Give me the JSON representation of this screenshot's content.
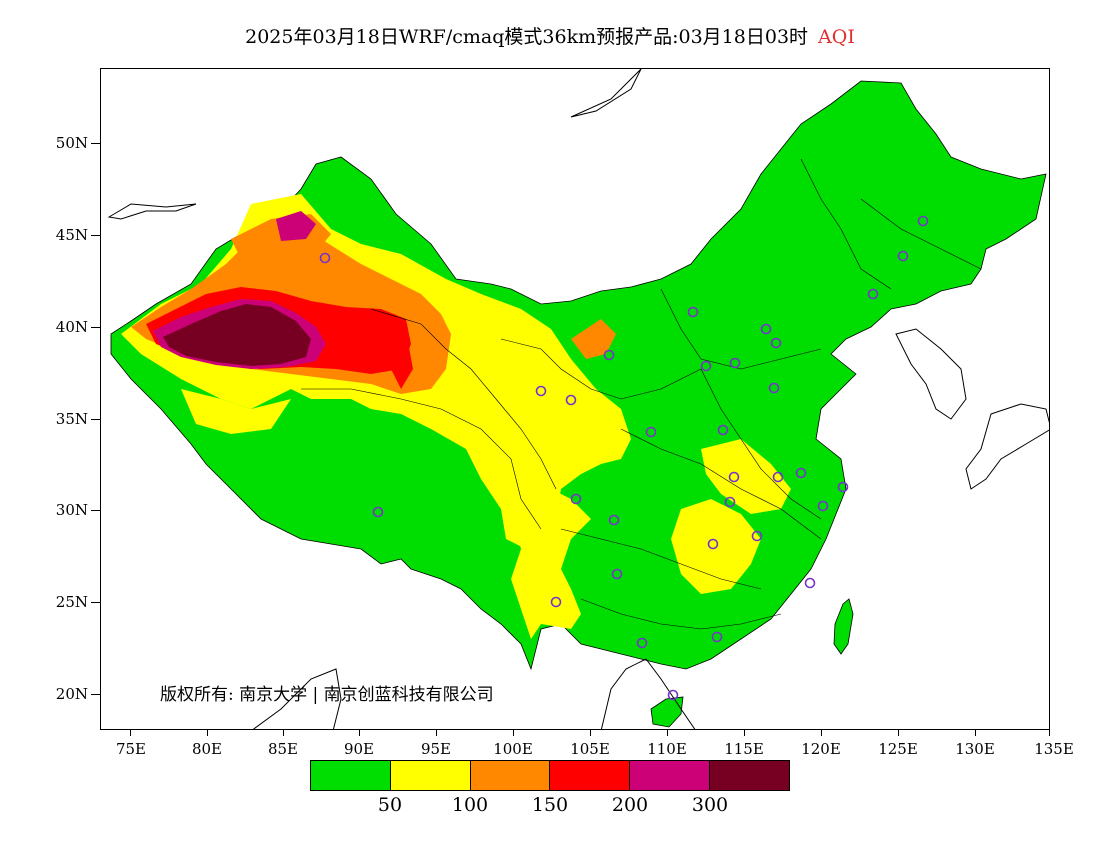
{
  "header": {
    "title": "2025年03月18日WRF/cmaq模式36km预报产品:03月18日03时",
    "product": "AQI",
    "product_color": "#e03030"
  },
  "map": {
    "lat_ticks": [
      "50N",
      "45N",
      "40N",
      "35N",
      "30N",
      "25N",
      "20N"
    ],
    "lon_ticks": [
      "75E",
      "80E",
      "85E",
      "90E",
      "95E",
      "100E",
      "105E",
      "110E",
      "115E",
      "120E",
      "125E",
      "130E",
      "135E"
    ],
    "copyright": "版权所有: 南京大学 | 南京创蓝科技有限公司",
    "aqi_colors": {
      "good": "#00dd00",
      "moderate": "#ffff00",
      "unhealthy_sensitive": "#ff8800",
      "unhealthy": "#ff0000",
      "very_unhealthy": "#cc0077",
      "hazardous": "#770022"
    },
    "station_marker": "circle-marker",
    "station_color": "#7733cc"
  },
  "legend": {
    "colors": [
      "#00dd00",
      "#ffff00",
      "#ff8800",
      "#ff0000",
      "#cc0077",
      "#770022"
    ],
    "labels": [
      "50",
      "100",
      "150",
      "200",
      "300"
    ]
  }
}
